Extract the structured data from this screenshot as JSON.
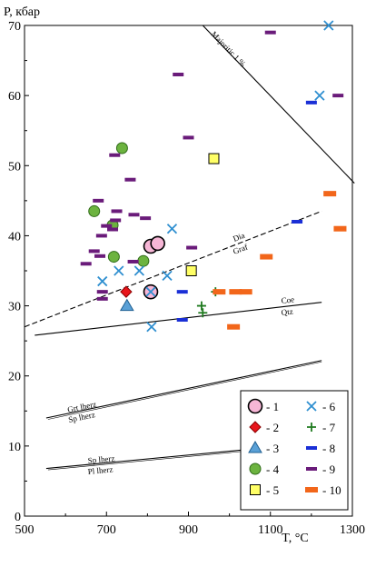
{
  "chart_data": {
    "type": "scatter",
    "title": "",
    "xlabel": "T, °C",
    "ylabel": "P, кбар",
    "xlim": [
      500,
      1300
    ],
    "ylim": [
      0,
      70
    ],
    "x_ticks": [
      500,
      700,
      900,
      1100,
      1300
    ],
    "x_tick_labels": [
      "500",
      "700",
      "900",
      "1100",
      "1300"
    ],
    "y_ticks": [
      0,
      10,
      20,
      30,
      40,
      50,
      60,
      70
    ],
    "y_tick_labels": [
      "0",
      "10",
      "20",
      "30",
      "40",
      "50",
      "60",
      "70"
    ],
    "grid": false,
    "legend_position": "bottom-right",
    "curves": [
      {
        "id": "majoritic",
        "label": "Majoritic 1 %",
        "style": "solid",
        "points": [
          [
            935,
            70
          ],
          [
            1305,
            47.5
          ]
        ]
      },
      {
        "id": "dia-graf",
        "label_above": "Dia",
        "label_below": "Graf",
        "style": "dashed",
        "points": [
          [
            500,
            27
          ],
          [
            1225,
            43.5
          ]
        ]
      },
      {
        "id": "coe-qtz",
        "label_above": "Coe",
        "label_below": "Qtz",
        "style": "solid",
        "points": [
          [
            525,
            25.8
          ],
          [
            1225,
            30.5
          ]
        ]
      },
      {
        "id": "grt-sp",
        "label_above": "Grt lherz",
        "label_below": "Sp lherz",
        "style": "solid",
        "points": [
          [
            553,
            14
          ],
          [
            1225,
            22.2
          ]
        ]
      },
      {
        "id": "sp-pl",
        "label_above": "Sp lherz",
        "label_below": "Pl lherz",
        "style": "solid",
        "points": [
          [
            553,
            6.8
          ],
          [
            1225,
            10.5
          ]
        ]
      }
    ],
    "series": [
      {
        "name": "1",
        "marker": "circle-large",
        "color": "#f6b6d6",
        "stroke": "#000000",
        "points": [
          [
            808,
            32
          ],
          [
            808,
            38.5
          ],
          [
            825,
            38.9
          ]
        ]
      },
      {
        "name": "2",
        "marker": "diamond",
        "color": "#e8151b",
        "stroke": "#8b0000",
        "points": [
          [
            748,
            32
          ]
        ]
      },
      {
        "name": "3",
        "marker": "triangle",
        "color": "#5aa0d6",
        "stroke": "#1f5f91",
        "points": [
          [
            750,
            30
          ]
        ]
      },
      {
        "name": "4",
        "marker": "circle",
        "color": "#6cb33f",
        "stroke": "#2f6b18",
        "points": [
          [
            738,
            52.5
          ],
          [
            670,
            43.5
          ],
          [
            715,
            41.5
          ],
          [
            718,
            37
          ],
          [
            790,
            36.4
          ]
        ]
      },
      {
        "name": "5",
        "marker": "square",
        "color": "#ffff66",
        "stroke": "#000000",
        "points": [
          [
            962,
            51
          ],
          [
            907,
            35
          ]
        ]
      },
      {
        "name": "6",
        "marker": "x",
        "color": "#2f8fd0",
        "points": [
          [
            1242,
            70
          ],
          [
            1220,
            60
          ],
          [
            860,
            41
          ],
          [
            690,
            33.5
          ],
          [
            730,
            35
          ],
          [
            780,
            35
          ],
          [
            848,
            34.3
          ],
          [
            808,
            32
          ],
          [
            810,
            27
          ]
        ]
      },
      {
        "name": "7",
        "marker": "plus",
        "color": "#1f7a1f",
        "points": [
          [
            966,
            32
          ],
          [
            932,
            30
          ],
          [
            935,
            29
          ]
        ]
      },
      {
        "name": "8",
        "marker": "dash",
        "color": "#1a2fd6",
        "points": [
          [
            1200,
            59
          ],
          [
            1165,
            42
          ],
          [
            885,
            32
          ],
          [
            885,
            28
          ]
        ]
      },
      {
        "name": "9",
        "marker": "dash",
        "color": "#6a1b7a",
        "points": [
          [
            1100,
            69
          ],
          [
            1265,
            60
          ],
          [
            875,
            63
          ],
          [
            900,
            54
          ],
          [
            720,
            51.5
          ],
          [
            758,
            48
          ],
          [
            680,
            45
          ],
          [
            725,
            43.5
          ],
          [
            767,
            43
          ],
          [
            795,
            42.5
          ],
          [
            722,
            42.2
          ],
          [
            700,
            41.4
          ],
          [
            715,
            40.9
          ],
          [
            688,
            40
          ],
          [
            670,
            37.8
          ],
          [
            684,
            37.1
          ],
          [
            765,
            36.3
          ],
          [
            650,
            36
          ],
          [
            690,
            32
          ],
          [
            908,
            38.3
          ],
          [
            690,
            31
          ]
        ]
      },
      {
        "name": "10",
        "marker": "dash-thick",
        "color": "#f2661a",
        "points": [
          [
            1245,
            46
          ],
          [
            1270,
            41
          ],
          [
            1090,
            37
          ],
          [
            1015,
            32
          ],
          [
            1040,
            32
          ],
          [
            975,
            32
          ],
          [
            1010,
            27
          ]
        ]
      }
    ],
    "legend": [
      {
        "marker": "circle-large",
        "color": "#f6b6d6",
        "label": "- 1"
      },
      {
        "marker": "x",
        "color": "#2f8fd0",
        "label": "- 6"
      },
      {
        "marker": "diamond",
        "color": "#e8151b",
        "label": "- 2"
      },
      {
        "marker": "plus",
        "color": "#1f7a1f",
        "label": "- 7"
      },
      {
        "marker": "triangle",
        "color": "#5aa0d6",
        "label": "- 3"
      },
      {
        "marker": "dash",
        "color": "#1a2fd6",
        "label": "- 8"
      },
      {
        "marker": "circle",
        "color": "#6cb33f",
        "label": "- 4"
      },
      {
        "marker": "dash",
        "color": "#6a1b7a",
        "label": "- 9"
      },
      {
        "marker": "square",
        "color": "#ffff66",
        "label": "- 5"
      },
      {
        "marker": "dash-thick",
        "color": "#f2661a",
        "label": "- 10"
      }
    ]
  }
}
